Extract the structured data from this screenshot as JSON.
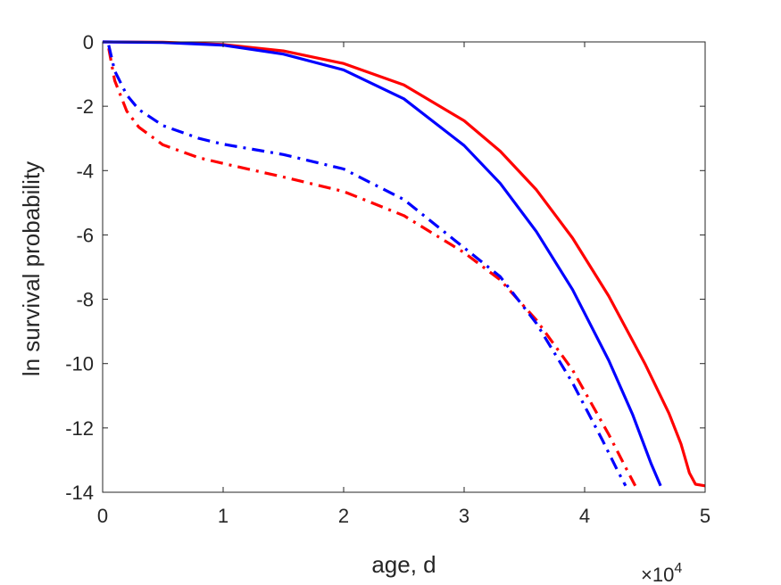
{
  "chart_data": {
    "type": "line",
    "title": "",
    "xlabel": "age, d",
    "ylabel": "ln survival probability",
    "x_multiplier_label": {
      "base": "×10",
      "exponent": "4"
    },
    "xlim": [
      0,
      50000
    ],
    "ylim": [
      -14,
      0
    ],
    "xticks": [
      0,
      10000,
      20000,
      30000,
      40000,
      50000
    ],
    "xtick_labels": [
      "0",
      "1",
      "2",
      "3",
      "4",
      "5"
    ],
    "yticks": [
      0,
      -2,
      -4,
      -6,
      -8,
      -10,
      -12,
      -14
    ],
    "ytick_labels": [
      "0",
      "-2",
      "-4",
      "-6",
      "-8",
      "-10",
      "-12",
      "-14"
    ],
    "grid": false,
    "series": [
      {
        "color": "#ff0000",
        "style": "solid",
        "x": [
          0,
          5000,
          10000,
          15000,
          20000,
          25000,
          30000,
          33000,
          36000,
          39000,
          42000,
          45000,
          47000,
          48000,
          48700,
          49200,
          50000
        ],
        "y": [
          0,
          -0.01,
          -0.08,
          -0.28,
          -0.67,
          -1.34,
          -2.45,
          -3.4,
          -4.6,
          -6.1,
          -7.9,
          -10.0,
          -11.55,
          -12.5,
          -13.4,
          -13.75,
          -13.8
        ]
      },
      {
        "color": "#0000ff",
        "style": "solid",
        "x": [
          0,
          5000,
          10000,
          15000,
          20000,
          25000,
          30000,
          33000,
          36000,
          39000,
          42000,
          44000,
          45500,
          46300
        ],
        "y": [
          0,
          -0.02,
          -0.1,
          -0.38,
          -0.87,
          -1.77,
          -3.22,
          -4.4,
          -5.9,
          -7.7,
          -9.9,
          -11.6,
          -13.1,
          -13.8
        ]
      },
      {
        "color": "#ff0000",
        "style": "dashdot",
        "x": [
          500,
          1000,
          2000,
          3000,
          5000,
          8000,
          10000,
          15000,
          20000,
          25000,
          30000,
          33000,
          36000,
          39000,
          42000,
          43500,
          44200
        ],
        "y": [
          -0.2,
          -1.2,
          -2.15,
          -2.65,
          -3.2,
          -3.6,
          -3.78,
          -4.2,
          -4.65,
          -5.4,
          -6.55,
          -7.4,
          -8.65,
          -10.2,
          -12.2,
          -13.3,
          -13.8
        ]
      },
      {
        "color": "#0000ff",
        "style": "dashdot",
        "x": [
          500,
          1000,
          2000,
          3000,
          5000,
          8000,
          10000,
          15000,
          20000,
          25000,
          30000,
          33000,
          36000,
          39000,
          41500,
          42700,
          43400
        ],
        "y": [
          -0.1,
          -0.9,
          -1.65,
          -2.1,
          -2.6,
          -3.0,
          -3.18,
          -3.5,
          -3.95,
          -4.9,
          -6.4,
          -7.3,
          -8.75,
          -10.6,
          -12.4,
          -13.3,
          -13.8
        ]
      }
    ]
  }
}
